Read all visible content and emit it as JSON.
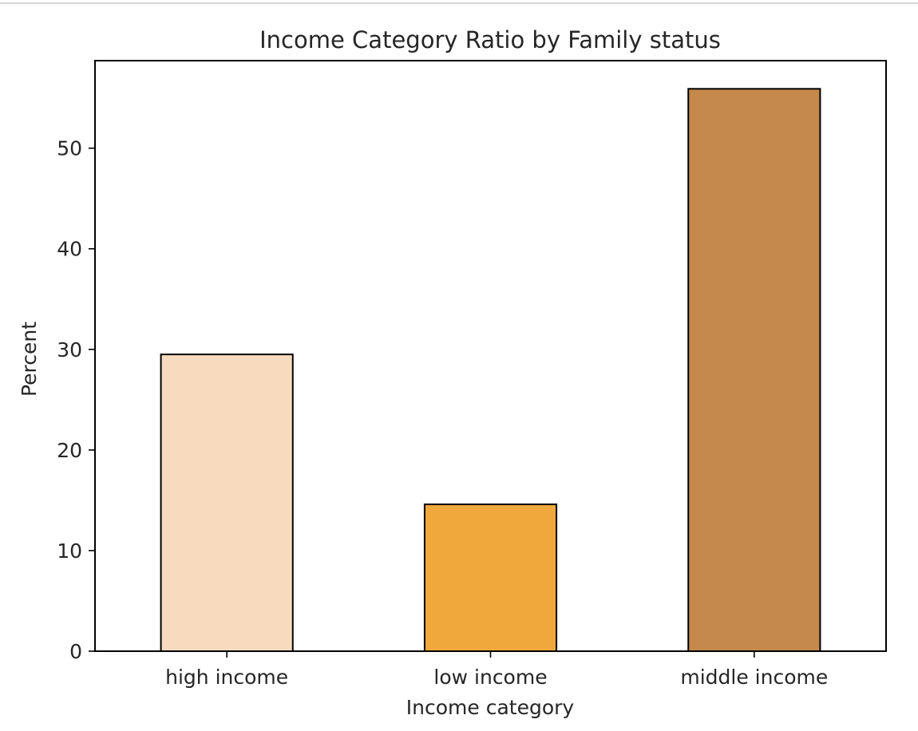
{
  "chart_data": {
    "type": "bar",
    "title": "Income Category Ratio by Family status",
    "xlabel": "Income category",
    "ylabel": "Percent",
    "categories": [
      "high income",
      "low income",
      "middle income"
    ],
    "values": [
      29.5,
      14.6,
      55.9
    ],
    "colors": [
      "#f8dbbf",
      "#f0a83c",
      "#c4894b"
    ],
    "edge_color": "#000000",
    "ylim": [
      0,
      58.7
    ],
    "yticks": [
      0,
      10,
      20,
      30,
      40,
      50
    ],
    "grid": false,
    "legend": "none"
  }
}
